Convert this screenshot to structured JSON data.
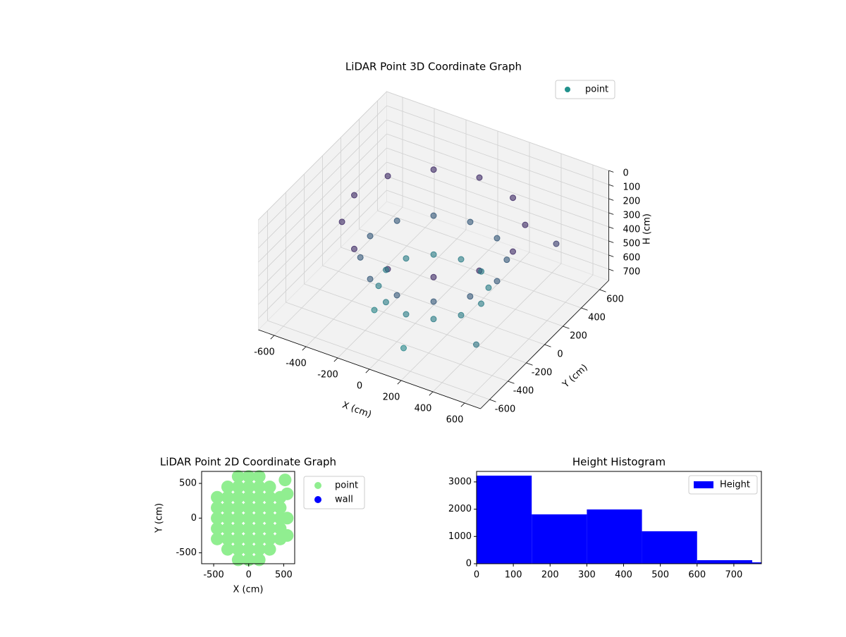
{
  "chart_data": [
    {
      "type": "scatter3d",
      "title": "LiDAR Point 3D Coordinate Graph",
      "xlabel": "X (cm)",
      "ylabel": "Y (cm)",
      "zlabel": "H (cm)",
      "xlim": [
        -700,
        700
      ],
      "ylim": [
        -700,
        700
      ],
      "zlim": [
        780,
        0
      ],
      "xticks": [
        -600,
        -400,
        -200,
        0,
        200,
        400,
        600
      ],
      "yticks": [
        -600,
        -400,
        -200,
        0,
        200,
        400,
        600
      ],
      "zticks": [
        0,
        100,
        200,
        300,
        400,
        500,
        600,
        700
      ],
      "color_range": [
        "#440154",
        "#21918c"
      ],
      "legend": "upper right",
      "series": [
        {
          "name": "point",
          "color": "#21918c",
          "x": [
            500,
            433,
            250,
            0,
            -250,
            -433,
            -500,
            -433,
            -250,
            0,
            250,
            433,
            400,
            346,
            200,
            0,
            -200,
            -346,
            -400,
            -346,
            -200,
            0,
            200,
            346,
            300,
            260,
            150,
            0,
            -150,
            -260,
            -300,
            -260,
            -150,
            0,
            150,
            260,
            -200,
            100,
            600,
            500
          ],
          "y": [
            0,
            250,
            433,
            500,
            433,
            250,
            0,
            -250,
            -433,
            -500,
            -433,
            -250,
            0,
            200,
            346,
            400,
            346,
            200,
            0,
            -200,
            -346,
            -400,
            -346,
            -200,
            0,
            150,
            260,
            300,
            260,
            150,
            0,
            -150,
            -260,
            -300,
            -260,
            -150,
            -300,
            -500,
            300,
            -400
          ],
          "z": [
            200,
            200,
            200,
            200,
            200,
            200,
            200,
            200,
            200,
            200,
            200,
            200,
            450,
            450,
            450,
            450,
            450,
            450,
            450,
            450,
            450,
            450,
            450,
            450,
            650,
            650,
            650,
            650,
            650,
            650,
            650,
            650,
            650,
            650,
            650,
            650,
            700,
            720,
            300,
            600
          ]
        }
      ]
    },
    {
      "type": "scatter",
      "title": "LiDAR Point 2D Coordinate Graph",
      "xlabel": "X (cm)",
      "ylabel": "Y (cm)",
      "xlim": [
        -672,
        657
      ],
      "ylim": [
        -657,
        673
      ],
      "xticks": [
        -500,
        0,
        500
      ],
      "yticks": [
        -500,
        0,
        500
      ],
      "legend": "outside upper right",
      "series": [
        {
          "name": "point",
          "color": "#90ee90",
          "x": [
            -450,
            -450,
            -450,
            -450,
            -450,
            -300,
            -300,
            -300,
            -300,
            -300,
            -300,
            -300,
            -150,
            -150,
            -150,
            -150,
            -150,
            -150,
            -150,
            -150,
            -150,
            0,
            0,
            0,
            0,
            0,
            0,
            0,
            0,
            0,
            150,
            150,
            150,
            150,
            150,
            150,
            150,
            150,
            150,
            300,
            300,
            300,
            300,
            300,
            300,
            300,
            450,
            450,
            450,
            450,
            450,
            550,
            550,
            550,
            520
          ],
          "y": [
            -300,
            -150,
            0,
            150,
            300,
            -450,
            -300,
            -150,
            0,
            150,
            300,
            450,
            -600,
            -450,
            -300,
            -150,
            0,
            150,
            300,
            450,
            600,
            -600,
            -450,
            -300,
            -150,
            0,
            150,
            300,
            450,
            600,
            -600,
            -450,
            -300,
            -150,
            0,
            150,
            300,
            450,
            600,
            -450,
            -300,
            -150,
            0,
            150,
            300,
            450,
            -300,
            -150,
            0,
            150,
            300,
            350,
            0,
            -250,
            550
          ]
        },
        {
          "name": "wall",
          "color": "#0000ff",
          "x": [],
          "y": []
        }
      ]
    },
    {
      "type": "histogram",
      "title": "Height Histogram",
      "xlim": [
        0,
        775
      ],
      "ylim": [
        0,
        3385
      ],
      "xticks": [
        0,
        100,
        200,
        300,
        400,
        500,
        600,
        700
      ],
      "yticks": [
        0,
        1000,
        2000,
        3000
      ],
      "bins": [
        0,
        150,
        300,
        450,
        600,
        750,
        900
      ],
      "legend": "upper right",
      "series": [
        {
          "name": "Height",
          "color": "#0000ff",
          "values": [
            3230,
            1810,
            1990,
            1190,
            130,
            50
          ]
        }
      ]
    }
  ]
}
